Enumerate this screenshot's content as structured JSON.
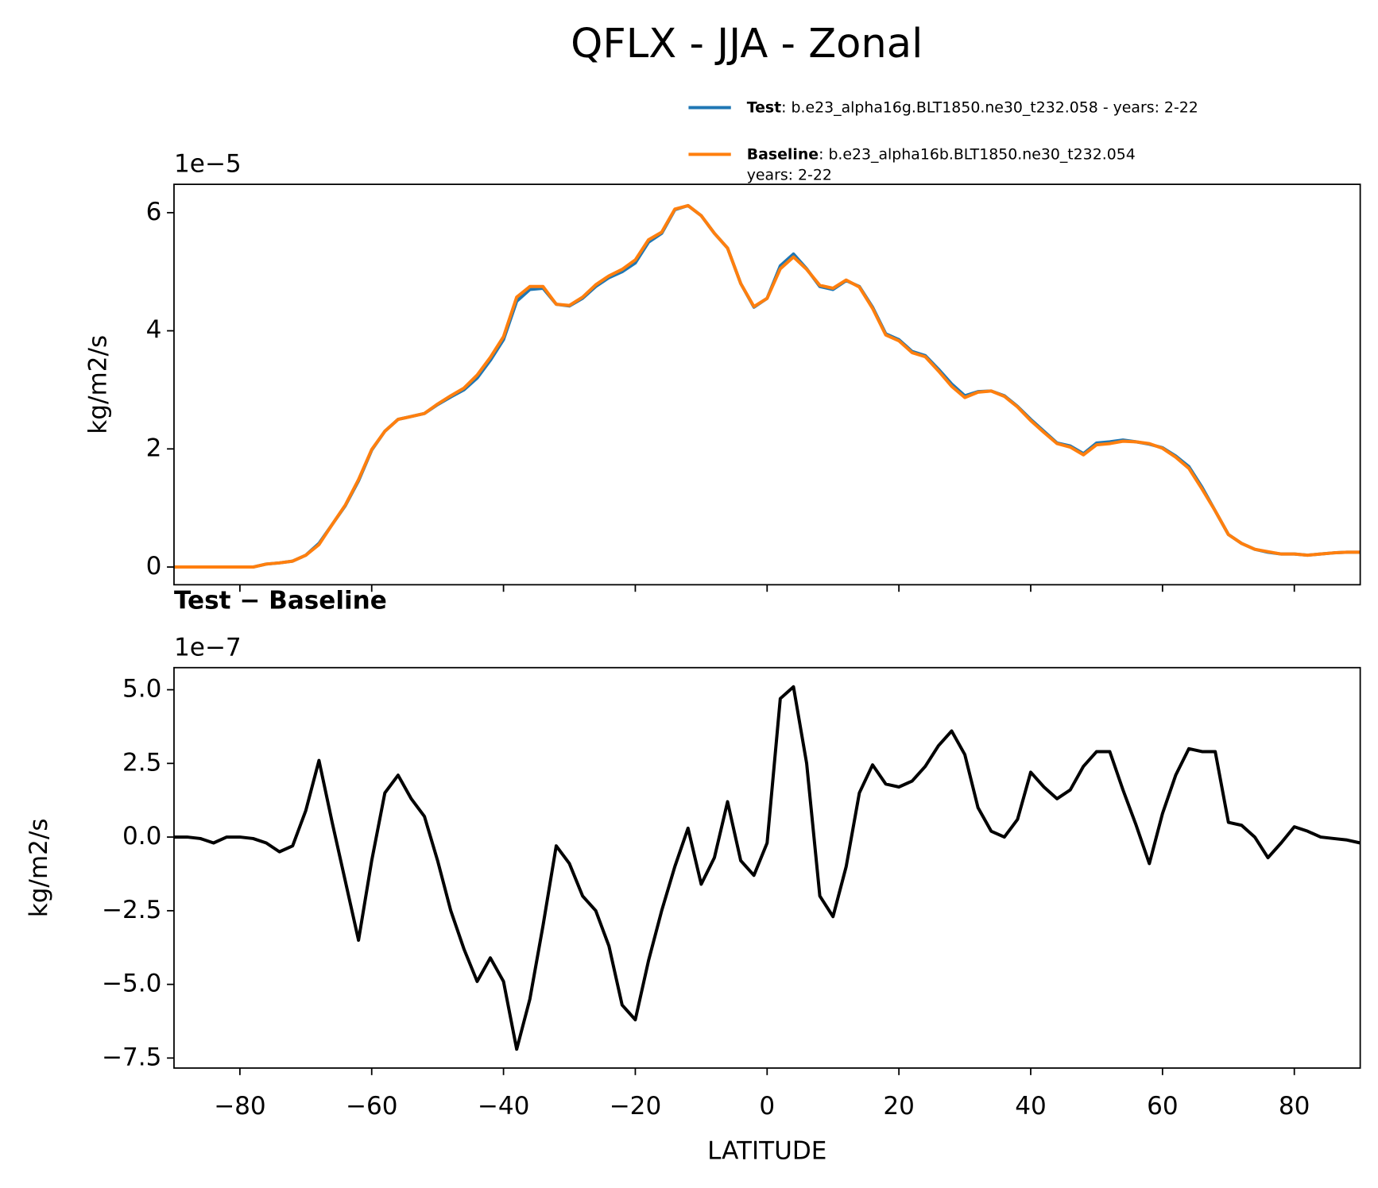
{
  "chart_data": [
    {
      "type": "line",
      "title": "QFLX - JJA - Zonal",
      "ylabel": "kg/m2/s",
      "offset_label": "1e−5",
      "x": [
        -90,
        -88,
        -86,
        -84,
        -82,
        -80,
        -78,
        -76,
        -74,
        -72,
        -70,
        -68,
        -66,
        -64,
        -62,
        -60,
        -58,
        -56,
        -54,
        -52,
        -50,
        -48,
        -46,
        -44,
        -42,
        -40,
        -38,
        -36,
        -34,
        -32,
        -30,
        -28,
        -26,
        -24,
        -22,
        -20,
        -18,
        -16,
        -14,
        -12,
        -10,
        -8,
        -6,
        -4,
        -2,
        0,
        2,
        4,
        6,
        8,
        10,
        12,
        14,
        16,
        18,
        20,
        22,
        24,
        26,
        28,
        30,
        32,
        34,
        36,
        38,
        40,
        42,
        44,
        46,
        48,
        50,
        52,
        54,
        56,
        58,
        60,
        62,
        64,
        66,
        68,
        70,
        72,
        74,
        76,
        78,
        80,
        82,
        84,
        86,
        88,
        90
      ],
      "series": [
        {
          "name": "Test",
          "description": [
            ": b.e23_alpha16g.BLT1850.ne30_t232.058 - years: 2-22"
          ],
          "color": "#1f77b4",
          "values": [
            0,
            0,
            0,
            0,
            0,
            0,
            0,
            0.05,
            0.07,
            0.1,
            0.2,
            0.4,
            0.72,
            1.04,
            1.46,
            1.98,
            2.3,
            2.5,
            2.55,
            2.6,
            2.75,
            2.88,
            3.0,
            3.2,
            3.5,
            3.85,
            4.5,
            4.7,
            4.72,
            4.45,
            4.42,
            4.55,
            4.75,
            4.9,
            5.0,
            5.15,
            5.5,
            5.65,
            6.05,
            6.12,
            5.95,
            5.65,
            5.4,
            4.8,
            4.4,
            4.55,
            5.1,
            5.3,
            5.05,
            4.75,
            4.7,
            4.85,
            4.75,
            4.4,
            3.95,
            3.85,
            3.65,
            3.58,
            3.35,
            3.1,
            2.9,
            2.97,
            2.98,
            2.9,
            2.72,
            2.5,
            2.3,
            2.1,
            2.05,
            1.92,
            2.1,
            2.12,
            2.15,
            2.12,
            2.08,
            2.02,
            1.88,
            1.7,
            1.35,
            0.95,
            0.55,
            0.4,
            0.3,
            0.25,
            0.22,
            0.22,
            0.2,
            0.22,
            0.24,
            0.25,
            0.25
          ]
        },
        {
          "name": "Baseline",
          "description": [
            ": b.e23_alpha16b.BLT1850.ne30_t232.054",
            "years: 2-22"
          ],
          "color": "#ff7f0e",
          "values": [
            0,
            0,
            0,
            0,
            0,
            0,
            0,
            0.05,
            0.07,
            0.1,
            0.2,
            0.38,
            0.72,
            1.05,
            1.48,
            1.99,
            2.3,
            2.5,
            2.55,
            2.6,
            2.76,
            2.9,
            3.03,
            3.25,
            3.55,
            3.9,
            4.57,
            4.75,
            4.75,
            4.45,
            4.43,
            4.57,
            4.78,
            4.93,
            5.04,
            5.2,
            5.54,
            5.67,
            6.06,
            6.12,
            5.95,
            5.65,
            5.4,
            4.8,
            4.41,
            4.55,
            5.05,
            5.25,
            5.04,
            4.77,
            4.72,
            4.86,
            4.74,
            4.38,
            3.93,
            3.83,
            3.63,
            3.56,
            3.32,
            3.06,
            2.87,
            2.96,
            2.98,
            2.89,
            2.71,
            2.48,
            2.28,
            2.09,
            2.03,
            1.9,
            2.07,
            2.09,
            2.13,
            2.12,
            2.09,
            2.01,
            1.86,
            1.67,
            1.32,
            0.95,
            0.55,
            0.4,
            0.3,
            0.26,
            0.22,
            0.22,
            0.2,
            0.22,
            0.24,
            0.25,
            0.25
          ]
        }
      ],
      "xlim": [
        -90,
        90
      ],
      "ylim": [
        -0.3,
        6.48
      ],
      "xticks": [
        {
          "value": -80,
          "label": "−80"
        },
        {
          "value": -60,
          "label": "−60"
        },
        {
          "value": -40,
          "label": "−40"
        },
        {
          "value": -20,
          "label": "−20"
        },
        0,
        20,
        40,
        60,
        80
      ],
      "show_xtick_labels": false,
      "yticks": [
        0,
        2,
        4,
        6
      ],
      "legend": "upper right"
    },
    {
      "type": "line",
      "title": "Test − Baseline",
      "ylabel": "kg/m2/s",
      "xlabel": "LATITUDE",
      "offset_label": "1e−7",
      "x": [
        -90,
        -88,
        -86,
        -84,
        -82,
        -80,
        -78,
        -76,
        -74,
        -72,
        -70,
        -68,
        -66,
        -64,
        -62,
        -60,
        -58,
        -56,
        -54,
        -52,
        -50,
        -48,
        -46,
        -44,
        -42,
        -40,
        -38,
        -36,
        -34,
        -32,
        -30,
        -28,
        -26,
        -24,
        -22,
        -20,
        -18,
        -16,
        -14,
        -12,
        -10,
        -8,
        -6,
        -4,
        -2,
        0,
        2,
        4,
        6,
        8,
        10,
        12,
        14,
        16,
        18,
        20,
        22,
        24,
        26,
        28,
        30,
        32,
        34,
        36,
        38,
        40,
        42,
        44,
        46,
        48,
        50,
        52,
        54,
        56,
        58,
        60,
        62,
        64,
        66,
        68,
        70,
        72,
        74,
        76,
        78,
        80,
        82,
        84,
        86,
        88,
        90
      ],
      "series": [
        {
          "color": "#000000",
          "values": [
            0,
            0,
            -0.05,
            -0.2,
            0,
            0,
            -0.05,
            -0.2,
            -0.5,
            -0.3,
            0.9,
            2.6,
            0.5,
            -1.5,
            -3.5,
            -0.8,
            1.5,
            2.1,
            1.3,
            0.7,
            -0.8,
            -2.5,
            -3.8,
            -4.9,
            -4.1,
            -4.9,
            -7.2,
            -5.5,
            -3.0,
            -0.3,
            -0.9,
            -2.0,
            -2.5,
            -3.7,
            -5.7,
            -6.2,
            -4.2,
            -2.5,
            -1.0,
            0.3,
            -1.6,
            -0.7,
            1.2,
            -0.8,
            -1.3,
            -0.2,
            4.7,
            5.1,
            2.5,
            -2.0,
            -2.7,
            -1.0,
            1.5,
            2.45,
            1.8,
            1.7,
            1.9,
            2.4,
            3.1,
            3.6,
            2.8,
            1.0,
            0.2,
            0.0,
            0.6,
            2.2,
            1.7,
            1.3,
            1.6,
            2.4,
            2.9,
            2.9,
            1.6,
            0.4,
            -0.9,
            0.8,
            2.1,
            3.0,
            2.9,
            2.9,
            0.5,
            0.4,
            0.0,
            -0.7,
            -0.2,
            0.35,
            0.2,
            0.0,
            -0.05,
            -0.1,
            -0.2
          ]
        }
      ],
      "xlim": [
        -90,
        90
      ],
      "ylim": [
        -7.84,
        5.75
      ],
      "xticks": [
        {
          "value": -80,
          "label": "−80"
        },
        {
          "value": -60,
          "label": "−60"
        },
        {
          "value": -40,
          "label": "−40"
        },
        {
          "value": -20,
          "label": "−20"
        },
        0,
        20,
        40,
        60,
        80
      ],
      "show_xtick_labels": true,
      "yticks": [
        {
          "value": 5,
          "label": "5.0"
        },
        {
          "value": 2.5,
          "label": "2.5"
        },
        {
          "value": 0,
          "label": "0.0"
        },
        {
          "value": -2.5,
          "label": "−2.5"
        },
        {
          "value": -5,
          "label": "−5.0"
        },
        {
          "value": -7.5,
          "label": "−7.5"
        }
      ]
    }
  ]
}
